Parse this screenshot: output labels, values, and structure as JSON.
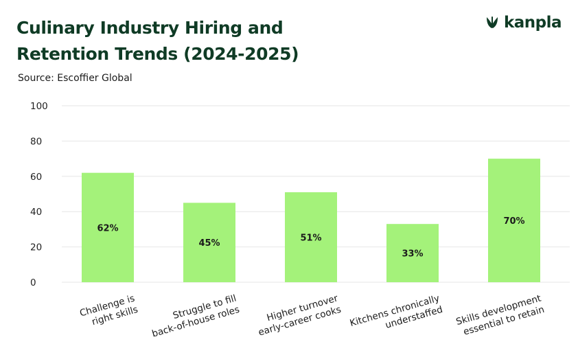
{
  "header": {
    "title_line1": "Culinary Industry Hiring and",
    "title_line2": "Retention Trends (2024-2025)",
    "source": "Source: Escoffier Global"
  },
  "brand": {
    "name": "kanpla",
    "icon": "leaf-logo-icon",
    "color": "#0f3b25"
  },
  "colors": {
    "bar": "#a4f27a",
    "grid": "#e6e6e6",
    "text": "#1b1b1b"
  },
  "chart_data": {
    "type": "bar",
    "title": "Culinary Industry Hiring and Retention Trends (2024-2025)",
    "xlabel": "",
    "ylabel": "",
    "ylim": [
      0,
      100
    ],
    "yticks": [
      0,
      20,
      40,
      60,
      80,
      100
    ],
    "grid": true,
    "categories": [
      [
        "Challenge is",
        "right skills"
      ],
      [
        "Struggle to fill",
        "back-of-house roles"
      ],
      [
        "Higher turnover",
        "early-career cooks"
      ],
      [
        "Kitchens chronically",
        "understaffed"
      ],
      [
        "Skills development",
        "essential to retain"
      ]
    ],
    "values": [
      62,
      45,
      51,
      33,
      70
    ],
    "labels": [
      "62%",
      "45%",
      "51%",
      "33%",
      "70%"
    ]
  }
}
